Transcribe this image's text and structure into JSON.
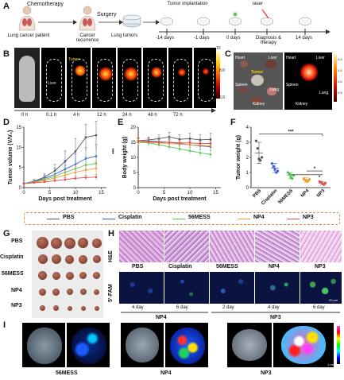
{
  "panel_labels": {
    "a": "A",
    "b": "B",
    "c": "C",
    "d": "D",
    "e": "E",
    "f": "F",
    "g": "G",
    "h": "H",
    "i": "I"
  },
  "timeline": {
    "patient": "Lung cancer patient",
    "chemotherapy": "Chemotherapy",
    "recurrence": "Cancer recurrence",
    "surgery": "Surgery",
    "lung_tumors": "Lung tumors",
    "tumor_implantation": "Tumor implantation",
    "laser": "laser",
    "days": [
      "-14 days",
      "-1 days",
      "0 days",
      "Diagnosis & therapy",
      "14 days"
    ]
  },
  "imaging_b": {
    "tumor": "Tumor",
    "liver": "Liver",
    "times": [
      "0 h",
      "0.1 h",
      "4 h",
      "12 h",
      "24 h",
      "48 h",
      "72 h"
    ],
    "scale_max": "10",
    "scale_ticks": [
      "8.0",
      "6.0"
    ],
    "scale_unit": "x10⁹"
  },
  "organs_c": {
    "heart": "Heart",
    "liver": "Liver",
    "tumor": "Tumor",
    "spleen": "Spleen",
    "lung": "Lung",
    "kidney": "Kidney",
    "scale_ticks": [
      "2.0",
      "1.5",
      "1.0",
      "0.5"
    ],
    "scale_unit": "x10⁸"
  },
  "chart_data": [
    {
      "type": "line",
      "title": "",
      "xlabel": "Days post treatment",
      "ylabel": "Tumor volume (V/V₀)",
      "xlim": [
        0,
        16
      ],
      "ylim": [
        0,
        15
      ],
      "xticks": [
        0,
        5,
        10,
        15
      ],
      "yticks": [
        0,
        5,
        10,
        15
      ],
      "x": [
        0,
        2,
        4,
        6,
        8,
        10,
        12,
        14
      ],
      "significance": "***",
      "series": [
        {
          "name": "PBS",
          "color": "#555555",
          "values": [
            1,
            1.6,
            2.6,
            4.2,
            6.5,
            9.0,
            12.5,
            13.0
          ],
          "errors": [
            0.2,
            0.4,
            0.8,
            1.6,
            2.6,
            3.2,
            3.2,
            3.5
          ]
        },
        {
          "name": "Cisplatin",
          "color": "#3b5bdb",
          "values": [
            1,
            1.5,
            2.3,
            3.3,
            4.6,
            5.8,
            7.2,
            7.8
          ],
          "errors": [
            0.2,
            0.4,
            0.8,
            1.5,
            2.2,
            2.6,
            2.8,
            3.0
          ]
        },
        {
          "name": "56MESS",
          "color": "#51c55a",
          "values": [
            1,
            1.4,
            2.0,
            2.8,
            3.8,
            4.7,
            5.6,
            6.0
          ],
          "errors": [
            0.2,
            0.3,
            0.6,
            1.2,
            1.6,
            1.8,
            2.0,
            2.0
          ]
        },
        {
          "name": "NP4",
          "color": "#f0a030",
          "values": [
            1,
            1.3,
            1.8,
            2.4,
            3.1,
            3.8,
            4.4,
            4.8
          ],
          "errors": [
            0.2,
            0.3,
            0.5,
            0.8,
            1.2,
            1.4,
            1.5,
            1.6
          ]
        },
        {
          "name": "NP3",
          "color": "#e05050",
          "values": [
            1,
            1.2,
            1.4,
            1.7,
            2.0,
            2.3,
            2.5,
            2.6
          ],
          "errors": [
            0.1,
            0.2,
            0.3,
            0.4,
            0.5,
            0.5,
            0.6,
            0.6
          ]
        }
      ]
    },
    {
      "type": "line",
      "title": "",
      "xlabel": "Days post treatment",
      "ylabel": "Body weight (g)",
      "xlim": [
        0,
        16
      ],
      "ylim": [
        0,
        20
      ],
      "xticks": [
        0,
        5,
        10,
        15
      ],
      "yticks": [
        0,
        5,
        10,
        15,
        20
      ],
      "x": [
        0,
        2,
        4,
        6,
        8,
        10,
        12,
        14
      ],
      "series": [
        {
          "name": "PBS",
          "color": "#555555",
          "values": [
            15.5,
            15.8,
            16.2,
            16.8,
            16.0,
            16.2,
            15.8,
            16.0
          ],
          "errors": [
            1,
            1,
            1.2,
            1.5,
            1.5,
            1.8,
            1.8,
            2
          ]
        },
        {
          "name": "Cisplatin",
          "color": "#3b5bdb",
          "values": [
            15.2,
            15.4,
            15.2,
            15.0,
            14.6,
            14.2,
            13.8,
            13.5
          ],
          "errors": [
            1,
            1,
            1,
            1.2,
            1.2,
            1.2,
            1.5,
            1.5
          ]
        },
        {
          "name": "56MESS",
          "color": "#51c55a",
          "values": [
            15.0,
            14.8,
            14.2,
            13.5,
            12.8,
            12.2,
            11.5,
            11.0
          ],
          "errors": [
            1,
            1,
            1,
            1,
            1,
            1.2,
            1.2,
            1.2
          ]
        },
        {
          "name": "NP4",
          "color": "#f0a030",
          "values": [
            15.2,
            15.0,
            14.8,
            14.6,
            14.4,
            14.2,
            14.0,
            13.8
          ],
          "errors": [
            1,
            1,
            1,
            1,
            1,
            1,
            1,
            1
          ]
        },
        {
          "name": "NP3",
          "color": "#e05050",
          "values": [
            15.4,
            15.2,
            15.0,
            15.0,
            14.8,
            14.8,
            14.6,
            14.6
          ],
          "errors": [
            1,
            1,
            1,
            1,
            1,
            1,
            1,
            1
          ]
        }
      ]
    },
    {
      "type": "scatter",
      "title": "",
      "xlabel": "",
      "ylabel": "Tumor weight (g)",
      "ylim": [
        0,
        4
      ],
      "yticks": [
        0,
        1,
        2,
        3,
        4
      ],
      "categories": [
        "PBS",
        "Cisplatin",
        "56MESS",
        "NP4",
        "NP3"
      ],
      "significance": [
        "***",
        "*",
        "*"
      ],
      "series": [
        {
          "name": "PBS",
          "color": "#555555",
          "mean": 2.3,
          "sd": 0.7,
          "points": [
            3.1,
            2.6,
            1.9,
            1.8,
            2.0
          ]
        },
        {
          "name": "Cisplatin",
          "color": "#3b5bdb",
          "mean": 1.3,
          "sd": 0.3,
          "points": [
            1.6,
            1.4,
            1.2,
            1.0,
            1.1
          ]
        },
        {
          "name": "56MESS",
          "color": "#51c55a",
          "mean": 0.8,
          "sd": 0.2,
          "points": [
            1.0,
            0.9,
            0.7,
            0.6,
            0.8
          ]
        },
        {
          "name": "NP4",
          "color": "#f0a030",
          "mean": 0.5,
          "sd": 0.15,
          "points": [
            0.6,
            0.5,
            0.4,
            0.45,
            0.55
          ]
        },
        {
          "name": "NP3",
          "color": "#e05050",
          "mean": 0.3,
          "sd": 0.1,
          "points": [
            0.4,
            0.35,
            0.25,
            0.2,
            0.3
          ]
        }
      ]
    }
  ],
  "legend": [
    "PBS",
    "Cisplatin",
    "56MESS",
    "NP4",
    "NP3"
  ],
  "g_rows": [
    "PBS",
    "Cisplatin",
    "56MESS",
    "NP4",
    "NP3"
  ],
  "h": {
    "row1": "H&E",
    "row2": "5'-FAM",
    "cols": [
      "PBS",
      "Cisplatin",
      "56MESS",
      "NP4",
      "NP3"
    ],
    "days": [
      "4 day",
      "6 day",
      "2 day",
      "4 day",
      "6 day"
    ],
    "groups": [
      "NP4",
      "NP3"
    ],
    "scale": "20 μm"
  },
  "i_labels": [
    "56MESS",
    "NP4",
    "NP3"
  ],
  "i_scale": "1 mm",
  "colors": {
    "pbs": "#555555",
    "cisplatin": "#3b5bdb",
    "mess": "#51c55a",
    "np4": "#f0a030",
    "np3": "#e05050",
    "legend_border": "#d98b3a"
  }
}
